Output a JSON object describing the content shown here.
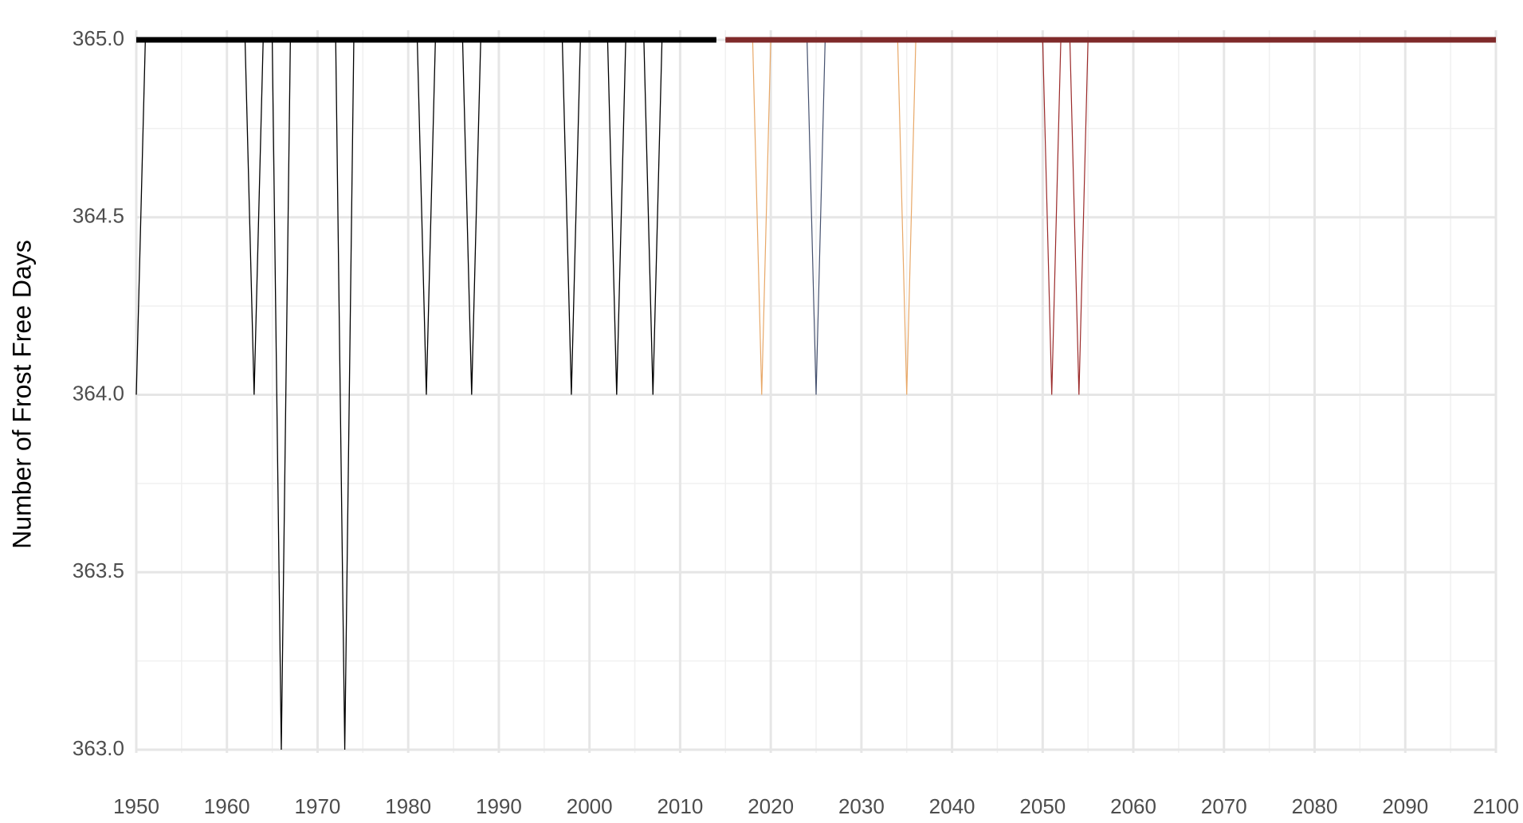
{
  "chart_data": {
    "type": "line",
    "y_label": "Number of Frost Free Days",
    "xlim": [
      1950,
      2100
    ],
    "xticks": [
      1950,
      1960,
      1970,
      1980,
      1990,
      2000,
      2010,
      2020,
      2030,
      2040,
      2050,
      2060,
      2070,
      2080,
      2090,
      2100
    ],
    "ylim": [
      363,
      365
    ],
    "yticks": [
      {
        "value": 363,
        "label": "363.0"
      },
      363.5,
      {
        "value": 364,
        "label": "364.0"
      },
      364.5,
      {
        "value": 365,
        "label": "365.0"
      }
    ],
    "grid": true,
    "series": [
      {
        "color": "#000000",
        "width": 1.3,
        "x": [
          1950,
          1951,
          1952,
          1953,
          1954,
          1955,
          1956,
          1957,
          1958,
          1959,
          1960,
          1961,
          1962,
          1963,
          1964,
          1965,
          1966,
          1967,
          1968,
          1969,
          1970,
          1971,
          1972,
          1973,
          1974,
          1975,
          1976,
          1977,
          1978,
          1979,
          1980,
          1981,
          1982,
          1983,
          1984,
          1985,
          1986,
          1987,
          1988,
          1989,
          1990,
          1991,
          1992,
          1993,
          1994,
          1995,
          1996,
          1997,
          1998,
          1999,
          2000,
          2001,
          2002,
          2003,
          2004,
          2005,
          2006,
          2007,
          2008,
          2009,
          2010,
          2011,
          2012,
          2013,
          2014
        ],
        "values": [
          364,
          365,
          365,
          365,
          365,
          365,
          365,
          365,
          365,
          365,
          365,
          365,
          365,
          364,
          365,
          365,
          363,
          365,
          365,
          365,
          365,
          365,
          365,
          363,
          365,
          365,
          365,
          365,
          365,
          365,
          365,
          365,
          364,
          365,
          365,
          365,
          365,
          364,
          365,
          365,
          365,
          365,
          365,
          365,
          365,
          365,
          365,
          365,
          364,
          365,
          365,
          365,
          365,
          364,
          365,
          365,
          365,
          364,
          365,
          365,
          365,
          365,
          365,
          365,
          365
        ]
      },
      {
        "color": "#e8a868",
        "width": 1.2,
        "x": [
          2015,
          2016,
          2017,
          2018,
          2019,
          2020,
          2021,
          2022,
          2023,
          2024,
          2025,
          2026,
          2027,
          2028,
          2029,
          2030,
          2031,
          2032,
          2033,
          2034,
          2035,
          2036,
          2037,
          2038,
          2039,
          2040,
          2041,
          2042,
          2043,
          2044,
          2045,
          2046,
          2047,
          2048,
          2049,
          2050,
          2051,
          2052,
          2053,
          2054,
          2055,
          2056,
          2057,
          2058,
          2059,
          2060,
          2061,
          2062,
          2063,
          2064,
          2065,
          2066,
          2067,
          2068,
          2069,
          2070,
          2071,
          2072,
          2073,
          2074,
          2075,
          2076,
          2077,
          2078,
          2079,
          2080,
          2081,
          2082,
          2083,
          2084,
          2085,
          2086,
          2087,
          2088,
          2089,
          2090,
          2091,
          2092,
          2093,
          2094,
          2095,
          2096,
          2097,
          2098,
          2099,
          2100
        ],
        "values": [
          365,
          365,
          365,
          365,
          364,
          365,
          365,
          365,
          365,
          365,
          365,
          365,
          365,
          365,
          365,
          365,
          365,
          365,
          365,
          365,
          364,
          365,
          365,
          365,
          365,
          365,
          365,
          365,
          365,
          365,
          365,
          365,
          365,
          365,
          365,
          365,
          365,
          365,
          365,
          365,
          365,
          365,
          365,
          365,
          365,
          365,
          365,
          365,
          365,
          365,
          365,
          365,
          365,
          365,
          365,
          365,
          365,
          365,
          365,
          365,
          365,
          365,
          365,
          365,
          365,
          365,
          365,
          365,
          365,
          365,
          365,
          365,
          365,
          365,
          365,
          365,
          365,
          365,
          365,
          365,
          365,
          365,
          365,
          365,
          365,
          365
        ]
      },
      {
        "color": "#44506e",
        "width": 1.2,
        "x": [
          2015,
          2016,
          2017,
          2018,
          2019,
          2020,
          2021,
          2022,
          2023,
          2024,
          2025,
          2026,
          2027,
          2028,
          2029,
          2030,
          2031,
          2032,
          2033,
          2034,
          2035,
          2036,
          2037,
          2038,
          2039,
          2040,
          2041,
          2042,
          2043,
          2044,
          2045,
          2046,
          2047,
          2048,
          2049,
          2050,
          2051,
          2052,
          2053,
          2054,
          2055,
          2056,
          2057,
          2058,
          2059,
          2060,
          2061,
          2062,
          2063,
          2064,
          2065,
          2066,
          2067,
          2068,
          2069,
          2070,
          2071,
          2072,
          2073,
          2074,
          2075,
          2076,
          2077,
          2078,
          2079,
          2080,
          2081,
          2082,
          2083,
          2084,
          2085,
          2086,
          2087,
          2088,
          2089,
          2090,
          2091,
          2092,
          2093,
          2094,
          2095,
          2096,
          2097,
          2098,
          2099,
          2100
        ],
        "values": [
          365,
          365,
          365,
          365,
          365,
          365,
          365,
          365,
          365,
          365,
          364,
          365,
          365,
          365,
          365,
          365,
          365,
          365,
          365,
          365,
          365,
          365,
          365,
          365,
          365,
          365,
          365,
          365,
          365,
          365,
          365,
          365,
          365,
          365,
          365,
          365,
          365,
          365,
          365,
          365,
          365,
          365,
          365,
          365,
          365,
          365,
          365,
          365,
          365,
          365,
          365,
          365,
          365,
          365,
          365,
          365,
          365,
          365,
          365,
          365,
          365,
          365,
          365,
          365,
          365,
          365,
          365,
          365,
          365,
          365,
          365,
          365,
          365,
          365,
          365,
          365,
          365,
          365,
          365,
          365,
          365,
          365,
          365,
          365,
          365,
          365
        ]
      },
      {
        "color": "#9b2a2a",
        "width": 1.2,
        "x": [
          2015,
          2016,
          2017,
          2018,
          2019,
          2020,
          2021,
          2022,
          2023,
          2024,
          2025,
          2026,
          2027,
          2028,
          2029,
          2030,
          2031,
          2032,
          2033,
          2034,
          2035,
          2036,
          2037,
          2038,
          2039,
          2040,
          2041,
          2042,
          2043,
          2044,
          2045,
          2046,
          2047,
          2048,
          2049,
          2050,
          2051,
          2052,
          2053,
          2054,
          2055,
          2056,
          2057,
          2058,
          2059,
          2060,
          2061,
          2062,
          2063,
          2064,
          2065,
          2066,
          2067,
          2068,
          2069,
          2070,
          2071,
          2072,
          2073,
          2074,
          2075,
          2076,
          2077,
          2078,
          2079,
          2080,
          2081,
          2082,
          2083,
          2084,
          2085,
          2086,
          2087,
          2088,
          2089,
          2090,
          2091,
          2092,
          2093,
          2094,
          2095,
          2096,
          2097,
          2098,
          2099,
          2100
        ],
        "values": [
          365,
          365,
          365,
          365,
          365,
          365,
          365,
          365,
          365,
          365,
          365,
          365,
          365,
          365,
          365,
          365,
          365,
          365,
          365,
          365,
          365,
          365,
          365,
          365,
          365,
          365,
          365,
          365,
          365,
          365,
          365,
          365,
          365,
          365,
          365,
          365,
          364,
          365,
          365,
          364,
          365,
          365,
          365,
          365,
          365,
          365,
          365,
          365,
          365,
          365,
          365,
          365,
          365,
          365,
          365,
          365,
          365,
          365,
          365,
          365,
          365,
          365,
          365,
          365,
          365,
          365,
          365,
          365,
          365,
          365,
          365,
          365,
          365,
          365,
          365,
          365,
          365,
          365,
          365,
          365,
          365,
          365,
          365,
          365,
          365,
          365
        ]
      },
      {
        "color": "#000000",
        "width": 7,
        "x": [
          1950,
          2014
        ],
        "values": [
          365,
          365
        ]
      },
      {
        "color": "#7f2a2a",
        "width": 7,
        "x": [
          2015,
          2100
        ],
        "values": [
          365,
          365
        ]
      }
    ]
  }
}
